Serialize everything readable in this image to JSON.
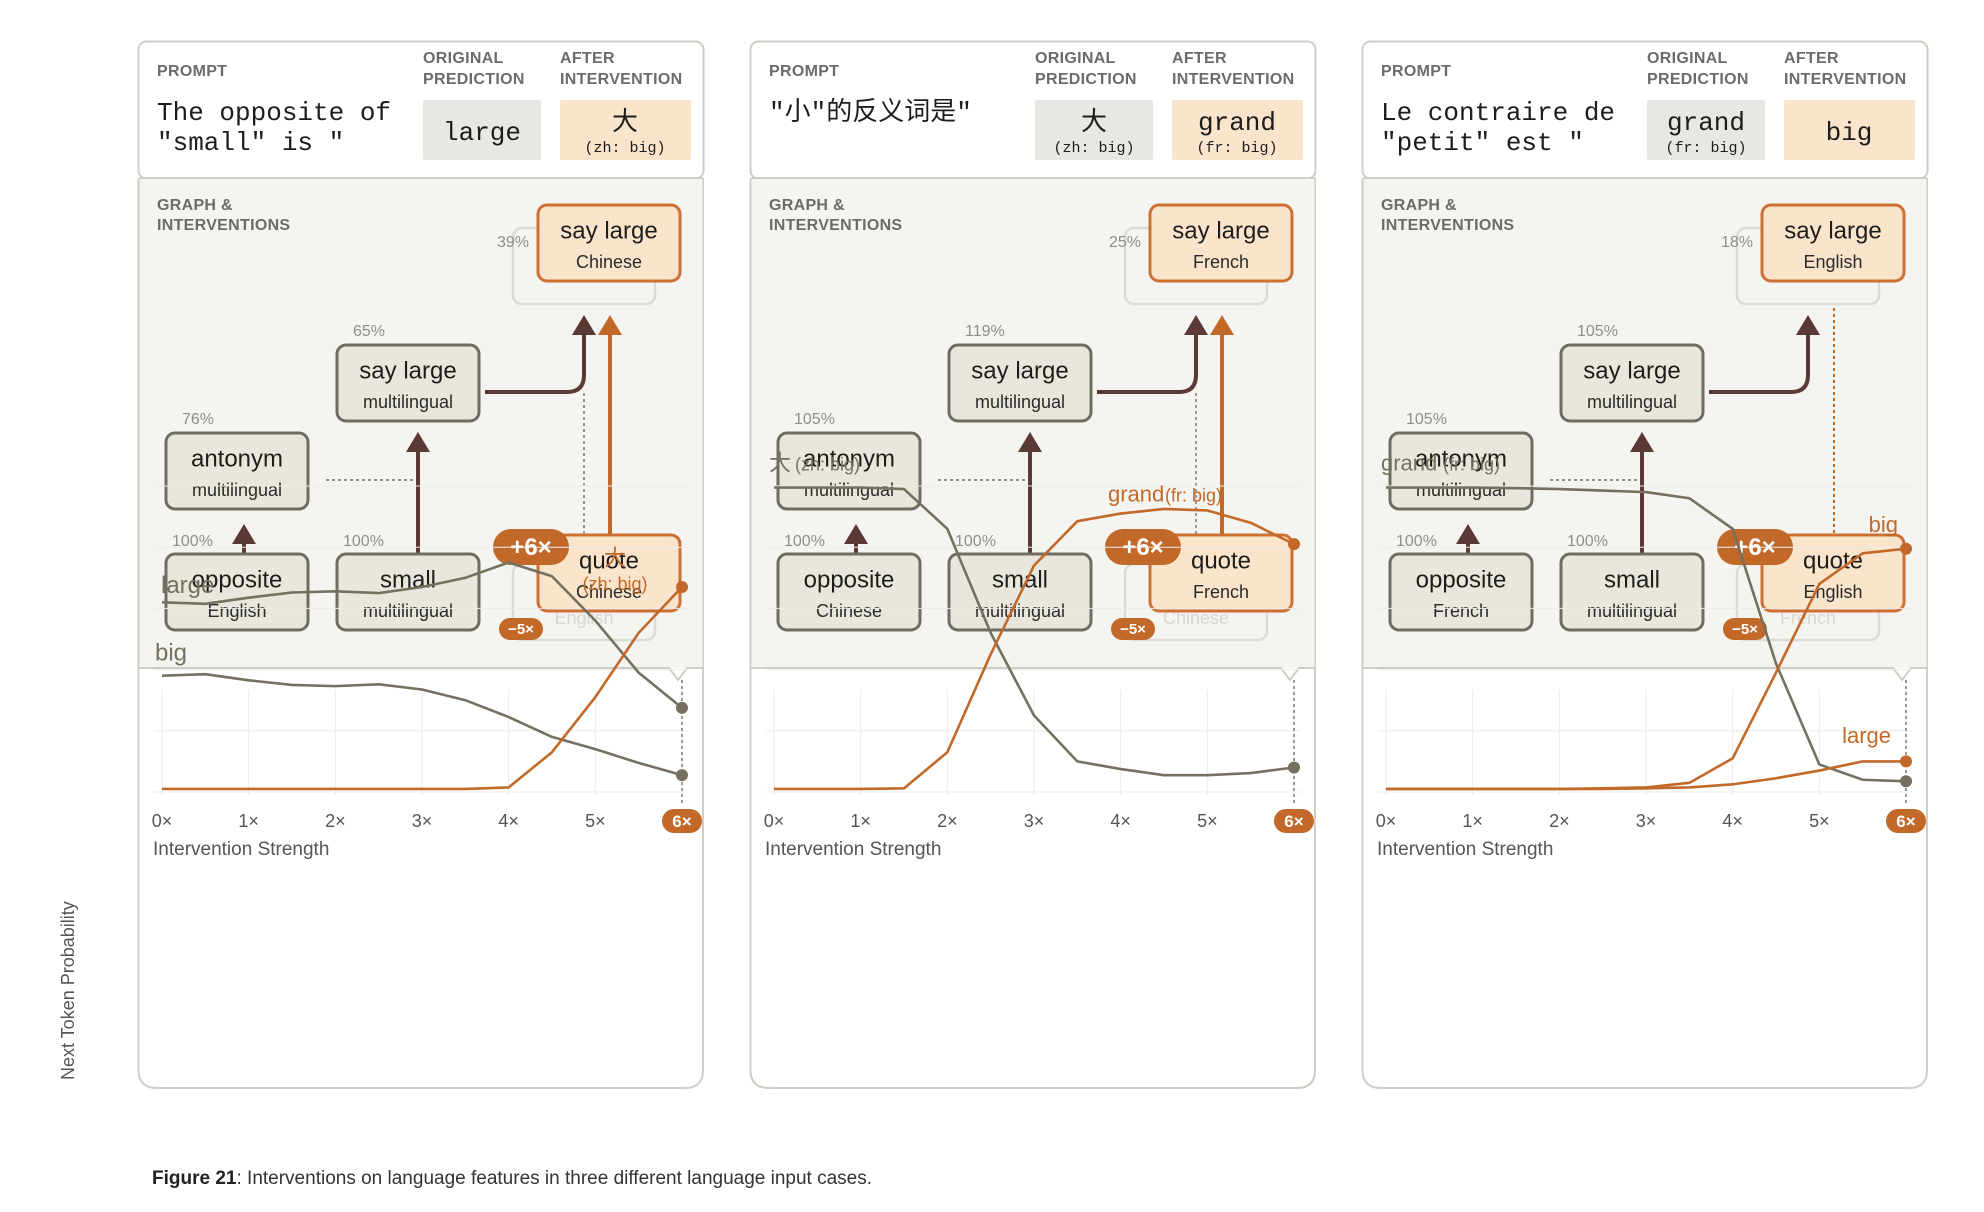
{
  "colors": {
    "gray": "#75705f",
    "orange": "#c2692a",
    "dark": "#5b3a36",
    "node_fill": "#e9e7dd",
    "node_stroke": "#6f6c63",
    "hl_fill": "#fbe4cc",
    "hl_stroke": "#cd7033"
  },
  "y_axis_label": "Next Token Probability",
  "x_axis_label": "Intervention Strength",
  "y_ticks": [
    "0.0",
    "0.2",
    "0.4",
    "0.6",
    "0.8",
    "1.0"
  ],
  "x_ticks": [
    "0×",
    "1×",
    "2×",
    "3×",
    "4×",
    "5×",
    "6×"
  ],
  "caption": {
    "bold": "Figure 21",
    "text": ": Interventions on language features in three different language input cases."
  },
  "panels": [
    {
      "header": {
        "prompt_label": "PROMPT",
        "orig_label": [
          "ORIGINAL",
          "PREDICTION"
        ],
        "after_label": [
          "AFTER",
          "INTERVENTION"
        ],
        "graph_label": [
          "GRAPH &",
          "INTERVENTIONS"
        ]
      },
      "prompt_lines": [
        "The opposite of",
        "\"small\" is \""
      ],
      "original": {
        "main": "large",
        "sub": ""
      },
      "after": {
        "main": "大",
        "sub": "(zh: big)"
      },
      "graph": {
        "opposite": {
          "title": "opposite",
          "sub": "English",
          "pct": "100%"
        },
        "small": {
          "title": "small",
          "sub": "multilingual",
          "pct": "100%"
        },
        "antonym": {
          "title": "antonym",
          "sub": "multilingual",
          "pct": "76%"
        },
        "saylarge_ml": {
          "title": "say large",
          "sub": "multilingual",
          "pct": "65%"
        },
        "saylarge_lang": {
          "title": "say large",
          "sub": "Chinese",
          "pct": "39%"
        },
        "quote": {
          "title": "quote",
          "sub": "Chinese"
        },
        "ghost_text": "English",
        "plus_badge": "+6×",
        "minus_badge": "−5×",
        "solid_orange_arrow": true
      },
      "chart_data": {
        "type": "line",
        "x": [
          0,
          0.5,
          1,
          1.5,
          2,
          2.5,
          3,
          3.5,
          4,
          4.5,
          5,
          5.5,
          6
        ],
        "ylim": [
          0,
          1.0
        ],
        "series": [
          {
            "name": "large",
            "label": "large",
            "color": "gray",
            "values": [
              0.62,
              0.615,
              0.635,
              0.652,
              0.656,
              0.65,
              0.67,
              0.7,
              0.75,
              0.705,
              0.56,
              0.39,
              0.275
            ]
          },
          {
            "name": "big",
            "label": "big",
            "color": "gray",
            "values": [
              0.38,
              0.385,
              0.365,
              0.35,
              0.346,
              0.352,
              0.335,
              0.3,
              0.245,
              0.18,
              0.14,
              0.095,
              0.055
            ]
          },
          {
            "name": "大 (zh: big)",
            "label": "大",
            "label2": "(zh: big)",
            "color": "orange",
            "values": [
              0.01,
              0.01,
              0.01,
              0.01,
              0.01,
              0.01,
              0.01,
              0.01,
              0.015,
              0.13,
              0.31,
              0.52,
              0.67
            ]
          }
        ]
      }
    },
    {
      "header": {
        "prompt_label": "PROMPT",
        "orig_label": [
          "ORIGINAL",
          "PREDICTION"
        ],
        "after_label": [
          "AFTER",
          "INTERVENTION"
        ],
        "graph_label": [
          "GRAPH &",
          "INTERVENTIONS"
        ]
      },
      "prompt_lines": [
        "\"小\"的反义词是\""
      ],
      "original": {
        "main": "大",
        "sub": "(zh: big)"
      },
      "after": {
        "main": "grand",
        "sub": "(fr: big)"
      },
      "graph": {
        "opposite": {
          "title": "opposite",
          "sub": "Chinese",
          "pct": "100%"
        },
        "small": {
          "title": "small",
          "sub": "multilingual",
          "pct": "100%"
        },
        "antonym": {
          "title": "antonym",
          "sub": "multilingual",
          "pct": "105%"
        },
        "saylarge_ml": {
          "title": "say large",
          "sub": "multilingual",
          "pct": "119%"
        },
        "saylarge_lang": {
          "title": "say large",
          "sub": "French",
          "pct": "25%"
        },
        "quote": {
          "title": "quote",
          "sub": "French"
        },
        "ghost_text": "Chinese",
        "plus_badge": "+6×",
        "minus_badge": "−5×",
        "solid_orange_arrow": true
      },
      "chart_data": {
        "type": "line",
        "x": [
          0,
          0.5,
          1,
          1.5,
          2,
          2.5,
          3,
          3.5,
          4,
          4.5,
          5,
          5.5,
          6
        ],
        "ylim": [
          0,
          1.0
        ],
        "series": [
          {
            "name": "大 (zh: big)",
            "label": "大",
            "label2": "(zh: big)",
            "color": "gray",
            "values": [
              0.995,
              0.995,
              0.995,
              0.99,
              0.86,
              0.52,
              0.25,
              0.1,
              0.075,
              0.055,
              0.055,
              0.062,
              0.08
            ]
          },
          {
            "name": "grand (fr: big)",
            "label": "grand",
            "label2": "(fr: big)",
            "color": "orange",
            "values": [
              0.01,
              0.01,
              0.01,
              0.012,
              0.13,
              0.45,
              0.74,
              0.885,
              0.91,
              0.925,
              0.92,
              0.88,
              0.81
            ]
          }
        ]
      }
    },
    {
      "header": {
        "prompt_label": "PROMPT",
        "orig_label": [
          "ORIGINAL",
          "PREDICTION"
        ],
        "after_label": [
          "AFTER",
          "INTERVENTION"
        ],
        "graph_label": [
          "GRAPH &",
          "INTERVENTIONS"
        ]
      },
      "prompt_lines": [
        "Le contraire de",
        "\"petit\" est \""
      ],
      "original": {
        "main": "grand",
        "sub": "(fr: big)"
      },
      "after": {
        "main": "big",
        "sub": ""
      },
      "graph": {
        "opposite": {
          "title": "opposite",
          "sub": "French",
          "pct": "100%"
        },
        "small": {
          "title": "small",
          "sub": "multilingual",
          "pct": "100%"
        },
        "antonym": {
          "title": "antonym",
          "sub": "multilingual",
          "pct": "105%"
        },
        "saylarge_ml": {
          "title": "say large",
          "sub": "multilingual",
          "pct": "105%"
        },
        "saylarge_lang": {
          "title": "say large",
          "sub": "English",
          "pct": "18%"
        },
        "quote": {
          "title": "quote",
          "sub": "English"
        },
        "ghost_text": "French",
        "plus_badge": "+6×",
        "minus_badge": "−5×",
        "solid_orange_arrow": false
      },
      "chart_data": {
        "type": "line",
        "x": [
          0,
          0.5,
          1,
          1.5,
          2,
          2.5,
          3,
          3.5,
          4,
          4.5,
          5,
          5.5,
          6
        ],
        "ylim": [
          0,
          1.0
        ],
        "series": [
          {
            "name": "grand (fr: big)",
            "label": "grand",
            "label2": "(fr: big)",
            "color": "gray",
            "values": [
              0.995,
              0.995,
              0.995,
              0.993,
              0.99,
              0.985,
              0.98,
              0.96,
              0.86,
              0.42,
              0.09,
              0.04,
              0.035
            ]
          },
          {
            "name": "big",
            "label": "big",
            "color": "orange",
            "values": [
              0.01,
              0.01,
              0.01,
              0.01,
              0.01,
              0.012,
              0.015,
              0.03,
              0.11,
              0.39,
              0.68,
              0.78,
              0.795
            ]
          },
          {
            "name": "large",
            "label": "large",
            "color": "orange",
            "values": [
              0.01,
              0.01,
              0.01,
              0.01,
              0.01,
              0.01,
              0.012,
              0.015,
              0.025,
              0.045,
              0.07,
              0.1,
              0.1
            ]
          }
        ]
      }
    }
  ]
}
